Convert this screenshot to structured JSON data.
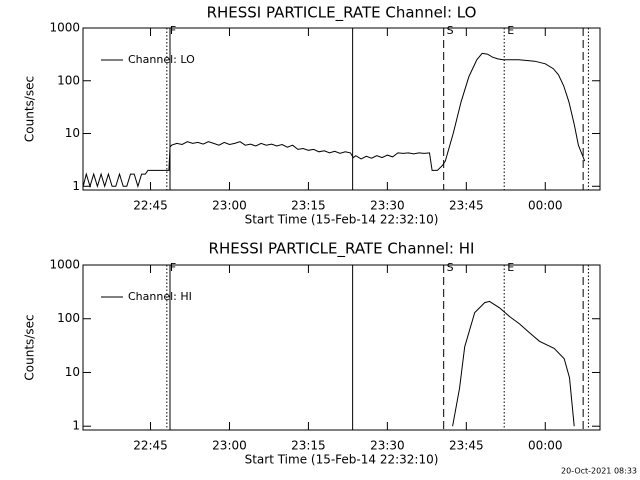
{
  "chart_data": [
    {
      "type": "line",
      "title": "RHESSI PARTICLE_RATE Channel: LO",
      "xlabel": "Start Time (15-Feb-14 22:32:10)",
      "ylabel": "Counts/sec",
      "x": [
        32.2,
        32.8,
        33.5,
        34.2,
        34.9,
        35.6,
        36.3,
        37,
        37.7,
        38.4,
        39.1,
        39.8,
        40.5,
        41.2,
        41.9,
        42.6,
        43.3,
        44,
        44.5,
        48.5,
        48.7,
        49,
        50,
        51,
        52,
        53,
        54,
        55,
        56,
        57,
        58,
        59,
        60,
        61,
        62,
        63,
        64,
        65,
        66,
        67,
        68,
        69,
        70,
        71,
        72,
        73,
        74,
        75,
        76,
        77,
        78,
        79,
        80,
        81,
        82,
        83,
        83.5,
        84,
        85,
        86,
        87,
        88,
        89,
        90,
        91,
        92,
        93,
        94,
        95,
        96,
        97,
        98,
        98.5,
        99.5,
        100.5,
        101,
        102.5,
        104,
        105.5,
        107,
        108,
        109,
        110,
        111,
        112,
        115,
        118,
        120,
        121.5,
        122.5,
        123.5,
        124.5,
        125.5,
        126.3,
        127,
        127.5
      ],
      "series": [
        {
          "name": "Channel: LO",
          "color": "#000000",
          "values": [
            1,
            1.7,
            1,
            1.7,
            1,
            1.7,
            1,
            1.7,
            1,
            1,
            1.7,
            1,
            1,
            1.7,
            1.7,
            1,
            1.7,
            1.7,
            2,
            2,
            5.5,
            6,
            6.5,
            6.2,
            7,
            6.5,
            6.8,
            6.3,
            7,
            6.5,
            6,
            6.8,
            6.2,
            6.5,
            7,
            6,
            6.3,
            5.8,
            6.5,
            6,
            6.3,
            5.8,
            6.2,
            5.5,
            6,
            5,
            5.2,
            4.8,
            5,
            4.5,
            4.7,
            4.3,
            4.6,
            4.2,
            4.5,
            4.3,
            3.5,
            3.8,
            3.3,
            3.7,
            3.4,
            3.8,
            3.5,
            3.9,
            3.6,
            4.3,
            4.2,
            4.3,
            4.1,
            4.3,
            4.2,
            4.3,
            2,
            2,
            2.5,
            3,
            10,
            40,
            120,
            250,
            330,
            320,
            280,
            260,
            250,
            250,
            235,
            210,
            170,
            130,
            80,
            40,
            15,
            6,
            4,
            3
          ]
        }
      ],
      "xlim": [
        32.17,
        130.4
      ],
      "xticks": [
        {
          "value": 45,
          "label": "22:45"
        },
        {
          "value": 60,
          "label": "23:00"
        },
        {
          "value": 75,
          "label": "23:15"
        },
        {
          "value": 90,
          "label": "23:30"
        },
        {
          "value": 105,
          "label": "23:45"
        },
        {
          "value": 120,
          "label": "00:00"
        }
      ],
      "ylim": [
        0.85,
        1000
      ],
      "yticks": [
        1,
        10,
        100,
        1000
      ],
      "log_y": true,
      "legend": "upper left",
      "markers": [
        {
          "x": 48.1,
          "style": "dotted",
          "label": "F"
        },
        {
          "x": 48.7,
          "style": "solid"
        },
        {
          "x": 83.4,
          "style": "solid"
        },
        {
          "x": 100.7,
          "style": "dashed",
          "label": "S"
        },
        {
          "x": 112.2,
          "style": "dotted",
          "label": "E"
        },
        {
          "x": 127.2,
          "style": "dashed"
        },
        {
          "x": 128.2,
          "style": "dotted"
        }
      ]
    },
    {
      "type": "line",
      "title": "RHESSI PARTICLE_RATE Channel: HI",
      "xlabel": "Start Time (15-Feb-14 22:32:10)",
      "ylabel": "Counts/sec",
      "x": [
        102.4,
        103.7,
        104.7,
        106.6,
        108.5,
        109.4,
        111.3,
        113.2,
        115.1,
        117,
        118.9,
        121.7,
        123.6,
        124.6,
        125.5
      ],
      "series": [
        {
          "name": "Channel: HI",
          "color": "#000000",
          "values": [
            1,
            5,
            30,
            130,
            200,
            210,
            160,
            110,
            80,
            55,
            38,
            28,
            18,
            8,
            1
          ]
        }
      ],
      "xlim": [
        32.17,
        130.4
      ],
      "xticks": [
        {
          "value": 45,
          "label": "22:45"
        },
        {
          "value": 60,
          "label": "23:00"
        },
        {
          "value": 75,
          "label": "23:15"
        },
        {
          "value": 90,
          "label": "23:30"
        },
        {
          "value": 105,
          "label": "23:45"
        },
        {
          "value": 120,
          "label": "00:00"
        }
      ],
      "ylim": [
        0.85,
        1000
      ],
      "yticks": [
        1,
        10,
        100,
        1000
      ],
      "log_y": true,
      "legend": "upper left",
      "markers": [
        {
          "x": 48.1,
          "style": "dotted",
          "label": "F"
        },
        {
          "x": 48.7,
          "style": "solid"
        },
        {
          "x": 83.4,
          "style": "solid"
        },
        {
          "x": 100.7,
          "style": "dashed",
          "label": "S"
        },
        {
          "x": 112.2,
          "style": "dotted",
          "label": "E"
        },
        {
          "x": 127.2,
          "style": "dashed"
        },
        {
          "x": 128.2,
          "style": "dotted"
        }
      ]
    }
  ],
  "footer": "20-Oct-2021 08:33"
}
